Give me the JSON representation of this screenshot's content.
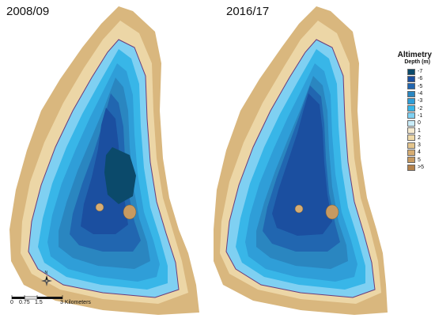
{
  "panels": {
    "left_title": "2008/09",
    "right_title": "2016/17"
  },
  "legend": {
    "title": "Altimetry",
    "subtitle": "Depth (m)",
    "items": [
      {
        "label": "-7",
        "color": "#0b4a6b"
      },
      {
        "label": "-6",
        "color": "#1b4fa0"
      },
      {
        "label": "-5",
        "color": "#2166b0"
      },
      {
        "label": "-4",
        "color": "#2a86c0"
      },
      {
        "label": "-3",
        "color": "#2f9ed8"
      },
      {
        "label": "-2",
        "color": "#38b6e8"
      },
      {
        "label": "-1",
        "color": "#7fd0f2"
      },
      {
        "label": "0",
        "color": "#c9ecf9"
      },
      {
        "label": "1",
        "color": "#f6ead0"
      },
      {
        "label": "2",
        "color": "#efd9a8"
      },
      {
        "label": "3",
        "color": "#e3c48c"
      },
      {
        "label": "4",
        "color": "#d6ad73"
      },
      {
        "label": "5",
        "color": "#c79a61"
      },
      {
        "label": ">5",
        "color": "#b4824c"
      }
    ]
  },
  "scale": {
    "labels": [
      "0",
      "0.75",
      "1.5",
      "3 Kilometers"
    ]
  },
  "north_label": "N"
}
